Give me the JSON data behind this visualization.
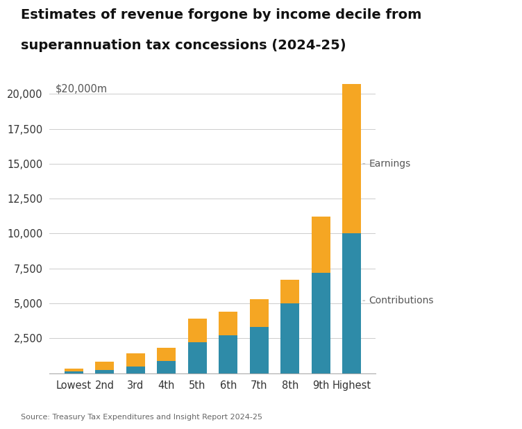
{
  "categories": [
    "Lowest",
    "2nd",
    "3rd",
    "4th",
    "5th",
    "6th",
    "7th",
    "8th",
    "9th",
    "Highest"
  ],
  "contributions": [
    150,
    250,
    500,
    900,
    2200,
    2700,
    3300,
    5000,
    7200,
    10000
  ],
  "earnings": [
    200,
    600,
    900,
    900,
    1700,
    1700,
    2000,
    1700,
    4000,
    10700
  ],
  "contributions_color": "#2e8ba8",
  "earnings_color": "#f5a623",
  "title_line1": "Estimates of revenue forgone by income decile from",
  "title_line2": "superannuation tax concessions (2024-25)",
  "ylabel_top": "$20,000m",
  "source_text": "Source: Treasury Tax Expenditures and Insight Report 2024-25",
  "yticks": [
    2500,
    5000,
    7500,
    10000,
    12500,
    15000,
    17500,
    20000
  ],
  "ymax": 21500,
  "label_earnings": "Earnings",
  "label_contributions": "Contributions",
  "bg_color": "#ffffff",
  "grid_color": "#cccccc",
  "title_fontsize": 14,
  "axis_fontsize": 10.5,
  "logo_bg": "#1a3260",
  "logo_text_color": "#ffffff"
}
